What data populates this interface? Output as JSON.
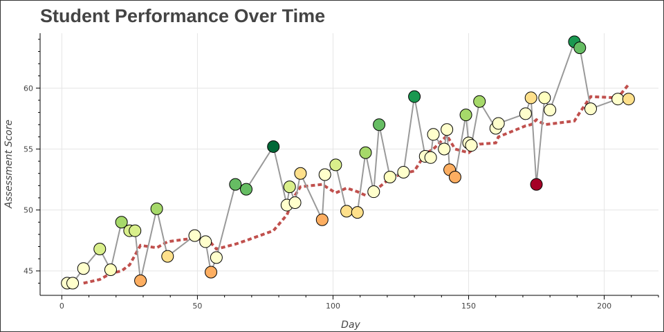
{
  "chart_data": {
    "type": "scatter",
    "title": "Student Performance Over Time",
    "xlabel": "Day",
    "ylabel": "Assessment Score",
    "xlim": [
      -8,
      220
    ],
    "ylim": [
      43,
      64.5
    ],
    "xticks": [
      0,
      50,
      100,
      150,
      200
    ],
    "yticks": [
      45,
      50,
      55,
      60
    ],
    "grid": true,
    "series": [
      {
        "style": "line+markers",
        "line_color": "#999999",
        "points": [
          {
            "x": 2,
            "y": 44.0,
            "color": "#ffffcc"
          },
          {
            "x": 4,
            "y": 44.0,
            "color": "#ffffcc"
          },
          {
            "x": 8,
            "y": 45.2,
            "color": "#ffffcc"
          },
          {
            "x": 14,
            "y": 46.8,
            "color": "#d9ef8b"
          },
          {
            "x": 18,
            "y": 45.1,
            "color": "#ffffbf"
          },
          {
            "x": 22,
            "y": 49.0,
            "color": "#a6d96a"
          },
          {
            "x": 25,
            "y": 48.3,
            "color": "#d9ef8b"
          },
          {
            "x": 27,
            "y": 48.3,
            "color": "#d9ef8b"
          },
          {
            "x": 29,
            "y": 44.2,
            "color": "#fdae61"
          },
          {
            "x": 35,
            "y": 50.1,
            "color": "#a6d96a"
          },
          {
            "x": 39,
            "y": 46.2,
            "color": "#fee08b"
          },
          {
            "x": 49,
            "y": 47.9,
            "color": "#ffffcc"
          },
          {
            "x": 53,
            "y": 47.4,
            "color": "#ffffcc"
          },
          {
            "x": 55,
            "y": 44.9,
            "color": "#fdae61"
          },
          {
            "x": 57,
            "y": 46.1,
            "color": "#ffffcc"
          },
          {
            "x": 64,
            "y": 52.1,
            "color": "#66bd63"
          },
          {
            "x": 68,
            "y": 51.7,
            "color": "#66bd63"
          },
          {
            "x": 78,
            "y": 55.2,
            "color": "#006837"
          },
          {
            "x": 83,
            "y": 50.4,
            "color": "#ffffcc"
          },
          {
            "x": 84,
            "y": 51.9,
            "color": "#d9ef8b"
          },
          {
            "x": 86,
            "y": 50.6,
            "color": "#ffffcc"
          },
          {
            "x": 88,
            "y": 53.0,
            "color": "#fee08b"
          },
          {
            "x": 96,
            "y": 49.2,
            "color": "#fdae61"
          },
          {
            "x": 97,
            "y": 52.9,
            "color": "#ffffcc"
          },
          {
            "x": 101,
            "y": 53.7,
            "color": "#d9ef8b"
          },
          {
            "x": 105,
            "y": 49.9,
            "color": "#fee08b"
          },
          {
            "x": 109,
            "y": 49.8,
            "color": "#fee08b"
          },
          {
            "x": 112,
            "y": 54.7,
            "color": "#a6d96a"
          },
          {
            "x": 115,
            "y": 51.5,
            "color": "#ffffcc"
          },
          {
            "x": 117,
            "y": 57.0,
            "color": "#66bd63"
          },
          {
            "x": 121,
            "y": 52.7,
            "color": "#ffffbf"
          },
          {
            "x": 126,
            "y": 53.1,
            "color": "#ffffcc"
          },
          {
            "x": 130,
            "y": 59.3,
            "color": "#1a9850"
          },
          {
            "x": 134,
            "y": 54.4,
            "color": "#ffffcc"
          },
          {
            "x": 136,
            "y": 54.3,
            "color": "#ffffcc"
          },
          {
            "x": 137,
            "y": 56.2,
            "color": "#ffffcc"
          },
          {
            "x": 141,
            "y": 55.0,
            "color": "#ffffcc"
          },
          {
            "x": 142,
            "y": 56.6,
            "color": "#ffffcc"
          },
          {
            "x": 143,
            "y": 53.3,
            "color": "#fdae61"
          },
          {
            "x": 145,
            "y": 52.7,
            "color": "#fdae61"
          },
          {
            "x": 149,
            "y": 57.8,
            "color": "#a6d96a"
          },
          {
            "x": 150,
            "y": 55.5,
            "color": "#ffffcc"
          },
          {
            "x": 151,
            "y": 55.3,
            "color": "#ffffcc"
          },
          {
            "x": 154,
            "y": 58.9,
            "color": "#a6d96a"
          },
          {
            "x": 160,
            "y": 56.7,
            "color": "#ffffcc"
          },
          {
            "x": 161,
            "y": 57.1,
            "color": "#ffffcc"
          },
          {
            "x": 171,
            "y": 57.9,
            "color": "#ffffcc"
          },
          {
            "x": 173,
            "y": 59.2,
            "color": "#fee08b"
          },
          {
            "x": 175,
            "y": 52.1,
            "color": "#a50026"
          },
          {
            "x": 178,
            "y": 59.2,
            "color": "#ffffbf"
          },
          {
            "x": 180,
            "y": 58.2,
            "color": "#ffffcc"
          },
          {
            "x": 189,
            "y": 63.8,
            "color": "#1a9850"
          },
          {
            "x": 191,
            "y": 63.3,
            "color": "#66bd63"
          },
          {
            "x": 195,
            "y": 58.3,
            "color": "#ffffcc"
          },
          {
            "x": 205,
            "y": 59.1,
            "color": "#ffffcc"
          },
          {
            "x": 209,
            "y": 59.1,
            "color": "#fee08b"
          }
        ]
      },
      {
        "style": "dashed-line",
        "color": "#c0504d",
        "points": [
          {
            "x": 8,
            "y": 44.0
          },
          {
            "x": 14,
            "y": 44.3
          },
          {
            "x": 18,
            "y": 44.8
          },
          {
            "x": 22,
            "y": 45.0
          },
          {
            "x": 25,
            "y": 45.5
          },
          {
            "x": 29,
            "y": 47.1
          },
          {
            "x": 35,
            "y": 46.9
          },
          {
            "x": 39,
            "y": 47.4
          },
          {
            "x": 49,
            "y": 47.7
          },
          {
            "x": 53,
            "y": 47.5
          },
          {
            "x": 55,
            "y": 47.3
          },
          {
            "x": 57,
            "y": 46.8
          },
          {
            "x": 64,
            "y": 47.2
          },
          {
            "x": 68,
            "y": 47.5
          },
          {
            "x": 78,
            "y": 48.3
          },
          {
            "x": 83,
            "y": 49.6
          },
          {
            "x": 86,
            "y": 51.2
          },
          {
            "x": 88,
            "y": 51.9
          },
          {
            "x": 96,
            "y": 52.1
          },
          {
            "x": 101,
            "y": 51.4
          },
          {
            "x": 105,
            "y": 51.8
          },
          {
            "x": 109,
            "y": 51.5
          },
          {
            "x": 112,
            "y": 51.2
          },
          {
            "x": 115,
            "y": 51.5
          },
          {
            "x": 121,
            "y": 52.6
          },
          {
            "x": 126,
            "y": 53.0
          },
          {
            "x": 130,
            "y": 53.2
          },
          {
            "x": 134,
            "y": 54.6
          },
          {
            "x": 137,
            "y": 55.0
          },
          {
            "x": 142,
            "y": 56.1
          },
          {
            "x": 145,
            "y": 55.0
          },
          {
            "x": 150,
            "y": 54.7
          },
          {
            "x": 154,
            "y": 55.4
          },
          {
            "x": 160,
            "y": 55.5
          },
          {
            "x": 161,
            "y": 56.0
          },
          {
            "x": 171,
            "y": 56.9
          },
          {
            "x": 173,
            "y": 57.0
          },
          {
            "x": 175,
            "y": 57.4
          },
          {
            "x": 178,
            "y": 57.0
          },
          {
            "x": 189,
            "y": 57.3
          },
          {
            "x": 191,
            "y": 58.0
          },
          {
            "x": 195,
            "y": 59.3
          },
          {
            "x": 205,
            "y": 59.2
          },
          {
            "x": 209,
            "y": 60.3
          }
        ]
      }
    ]
  }
}
